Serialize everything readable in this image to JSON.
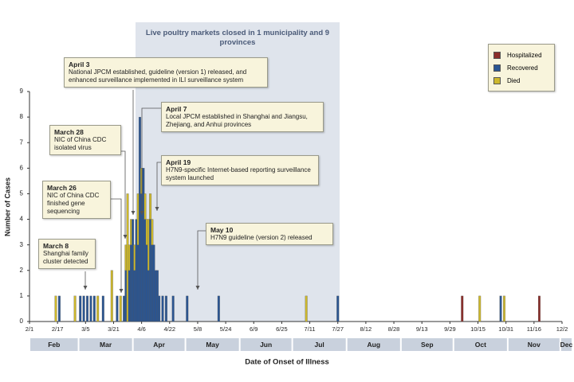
{
  "chart_data": {
    "type": "bar",
    "xlabel": "Date of Onset of Illness",
    "ylabel": "Number of Cases",
    "shaded_region_label": "Live poultry markets closed in 1 municipality and 9 provinces",
    "xlim": [
      0,
      304
    ],
    "xticks": [
      {
        "value": 0,
        "label": "2/1"
      },
      {
        "value": 16,
        "label": "2/17"
      },
      {
        "value": 32,
        "label": "3/5"
      },
      {
        "value": 48,
        "label": "3/21"
      },
      {
        "value": 64,
        "label": "4/6"
      },
      {
        "value": 80,
        "label": "4/22"
      },
      {
        "value": 96,
        "label": "5/8"
      },
      {
        "value": 112,
        "label": "5/24"
      },
      {
        "value": 128,
        "label": "6/9"
      },
      {
        "value": 144,
        "label": "6/25"
      },
      {
        "value": 160,
        "label": "7/11"
      },
      {
        "value": 176,
        "label": "7/27"
      },
      {
        "value": 192,
        "label": "8/12"
      },
      {
        "value": 208,
        "label": "8/28"
      },
      {
        "value": 224,
        "label": "9/13"
      },
      {
        "value": 240,
        "label": "9/29"
      },
      {
        "value": 256,
        "label": "10/15"
      },
      {
        "value": 272,
        "label": "10/31"
      },
      {
        "value": 288,
        "label": "11/16"
      },
      {
        "value": 304,
        "label": "12/2"
      }
    ],
    "ylim": [
      0,
      9
    ],
    "yticks": [
      0,
      1,
      2,
      3,
      4,
      5,
      6,
      7,
      8,
      9
    ],
    "month_labels": [
      "Feb",
      "Mar",
      "Apr",
      "May",
      "Jun",
      "Jul",
      "Aug",
      "Sep",
      "Oct",
      "Nov",
      "Dec"
    ],
    "x": [
      15,
      17,
      26,
      29,
      31,
      33,
      35,
      37,
      39,
      42,
      47,
      50,
      52,
      54,
      55,
      56,
      57,
      58,
      59,
      60,
      61,
      62,
      63,
      64,
      65,
      66,
      67,
      68,
      69,
      70,
      71,
      72,
      73,
      74,
      76,
      78,
      82,
      90,
      108,
      158,
      176,
      247,
      257,
      269,
      271,
      291
    ],
    "series": [
      {
        "name": "Hospitalized",
        "color": "#8b2e2a",
        "values": [
          0,
          0,
          0,
          0,
          0,
          0,
          0,
          0,
          0,
          0,
          0,
          0,
          0,
          0,
          0,
          0,
          0,
          0,
          0,
          0,
          0,
          0,
          0,
          0,
          0,
          0,
          0,
          0,
          0,
          0,
          0,
          0,
          0,
          0,
          0,
          0,
          0,
          0,
          0,
          0,
          0,
          1,
          0,
          0,
          0,
          1
        ]
      },
      {
        "name": "Recovered",
        "color": "#2a5592",
        "values": [
          0,
          1,
          0,
          1,
          1,
          1,
          1,
          1,
          0,
          1,
          0,
          1,
          0,
          1,
          2,
          0,
          2,
          3,
          4,
          2,
          4,
          3,
          8,
          5,
          6,
          4,
          3,
          2,
          4,
          3,
          3,
          2,
          2,
          1,
          1,
          1,
          1,
          1,
          1,
          0,
          1,
          0,
          0,
          1,
          0,
          0
        ]
      },
      {
        "name": "Died",
        "color": "#cdb82c",
        "values": [
          1,
          0,
          1,
          0,
          0,
          0,
          0,
          0,
          1,
          0,
          2,
          0,
          1,
          0,
          1,
          5,
          1,
          1,
          0,
          1,
          0,
          2,
          0,
          1,
          0,
          1,
          1,
          2,
          1,
          1,
          0,
          0,
          0,
          0,
          0,
          0,
          0,
          0,
          0,
          1,
          0,
          0,
          1,
          0,
          1,
          0
        ]
      }
    ],
    "annotations": [
      {
        "date": "April 3",
        "text": "National JPCM established, guideline (version 1) released, and enhanced surveillance implemented in ILI surveillance system"
      },
      {
        "date": "April 7",
        "text": "Local JPCM established in Shanghai and Jiangsu, Zhejiang, and Anhui provinces"
      },
      {
        "date": "March 28",
        "text": "NIC of China CDC isolated virus"
      },
      {
        "date": "April 19",
        "text": "H7N9-specific Internet-based reporting surveillance system launched"
      },
      {
        "date": "March 26",
        "text": "NIC of China CDC finished gene sequencing"
      },
      {
        "date": "May 10",
        "text": "H7N9 guideline (version 2) released"
      },
      {
        "date": "March 8",
        "text": "Shanghai family cluster detected"
      }
    ]
  }
}
